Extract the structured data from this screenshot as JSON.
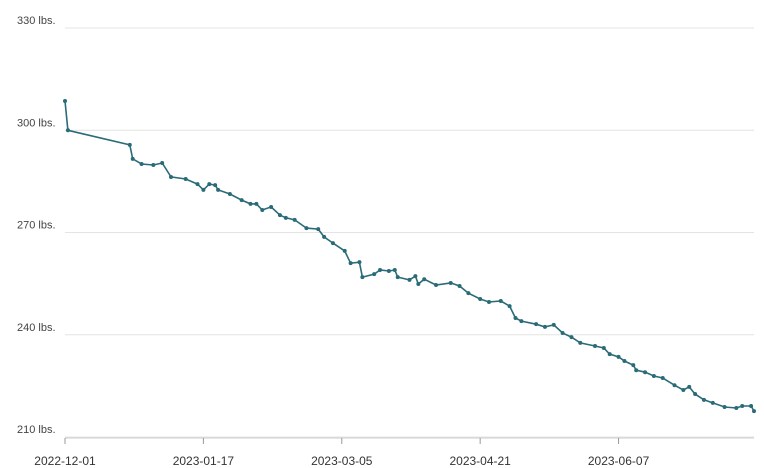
{
  "chart_data": {
    "type": "line",
    "color": "#2a6b78",
    "grid": true,
    "x": [
      "2022-12-01",
      "2022-12-02",
      "2022-12-23",
      "2022-12-24",
      "2022-12-27",
      "2022-12-31",
      "2023-01-03",
      "2023-01-06",
      "2023-01-11",
      "2023-01-15",
      "2023-01-17",
      "2023-01-19",
      "2023-01-21",
      "2023-01-22",
      "2023-01-26",
      "2023-01-30",
      "2023-02-02",
      "2023-02-04",
      "2023-02-06",
      "2023-02-09",
      "2023-02-12",
      "2023-02-14",
      "2023-02-17",
      "2023-02-21",
      "2023-02-25",
      "2023-02-27",
      "2023-03-02",
      "2023-03-06",
      "2023-03-08",
      "2023-03-11",
      "2023-03-12",
      "2023-03-16",
      "2023-03-18",
      "2023-03-21",
      "2023-03-23",
      "2023-03-24",
      "2023-03-28",
      "2023-03-30",
      "2023-03-31",
      "2023-04-02",
      "2023-04-06",
      "2023-04-11",
      "2023-04-14",
      "2023-04-17",
      "2023-04-21",
      "2023-04-24",
      "2023-04-28",
      "2023-05-01",
      "2023-05-03",
      "2023-05-05",
      "2023-05-10",
      "2023-05-13",
      "2023-05-16",
      "2023-05-19",
      "2023-05-22",
      "2023-05-25",
      "2023-05-30",
      "2023-06-02",
      "2023-06-04",
      "2023-06-07",
      "2023-06-09",
      "2023-06-12",
      "2023-06-13",
      "2023-06-16",
      "2023-06-19",
      "2023-06-22",
      "2023-06-26",
      "2023-06-29",
      "2023-07-01",
      "2023-07-03",
      "2023-07-06",
      "2023-07-09",
      "2023-07-13",
      "2023-07-17",
      "2023-07-19",
      "2023-07-22",
      "2023-07-23"
    ],
    "values": [
      308.6,
      300.0,
      295.7,
      291.6,
      290.1,
      289.8,
      290.4,
      286.3,
      285.7,
      284.2,
      282.5,
      284.2,
      283.9,
      282.5,
      281.3,
      279.5,
      278.4,
      278.4,
      276.6,
      277.5,
      275.1,
      274.3,
      273.7,
      271.3,
      271.0,
      268.7,
      266.9,
      264.6,
      261.0,
      261.3,
      256.9,
      257.8,
      259.0,
      258.7,
      259.0,
      256.9,
      256.1,
      257.2,
      254.9,
      256.3,
      254.6,
      255.2,
      254.3,
      252.2,
      250.5,
      249.6,
      249.9,
      248.4,
      244.9,
      244.0,
      243.1,
      242.3,
      242.9,
      240.5,
      239.3,
      237.6,
      236.7,
      236.1,
      234.3,
      233.5,
      232.3,
      231.1,
      229.6,
      229.0,
      227.9,
      227.3,
      225.2,
      223.8,
      224.7,
      222.6,
      220.9,
      220.0,
      218.8,
      218.5,
      219.1,
      219.1,
      217.6
    ],
    "xlim": [
      "2022-12-01",
      "2023-07-23"
    ],
    "xticks": [
      "2022-12-01",
      "2023-01-17",
      "2023-03-05",
      "2023-04-21",
      "2023-06-07"
    ],
    "ylim": [
      210,
      330
    ],
    "yticks": [
      {
        "value": 210,
        "label": "210 lbs."
      },
      {
        "value": 240,
        "label": "240 lbs."
      },
      {
        "value": 270,
        "label": "270 lbs."
      },
      {
        "value": 300,
        "label": "300 lbs."
      },
      {
        "value": 330,
        "label": "330 lbs."
      }
    ]
  }
}
